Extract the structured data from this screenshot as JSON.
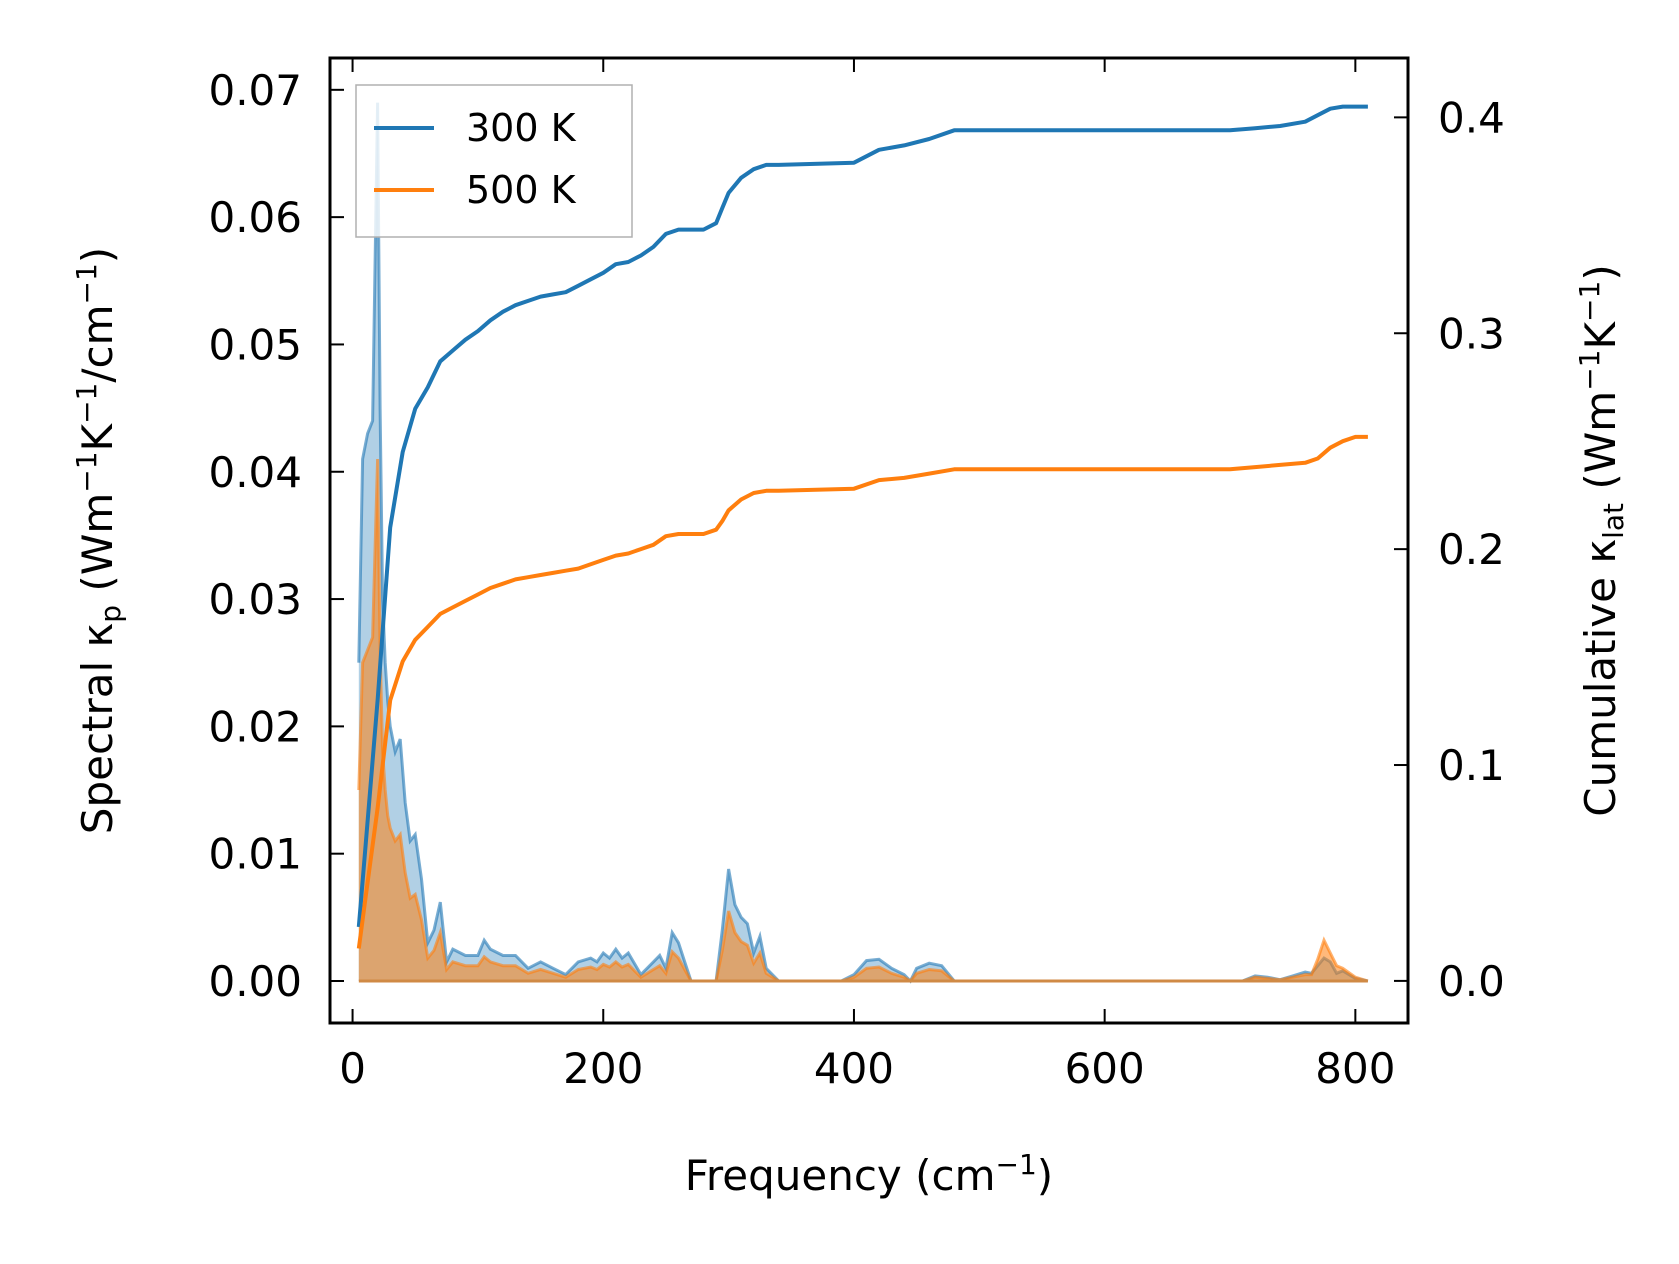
{
  "chart_data": {
    "type": "line",
    "xlabel": "Frequency (cm",
    "xlabel_sup": "−1",
    "xlabel_tail": ")",
    "ylabel_left": {
      "pre": "Spectral κ",
      "sub": "p",
      "mid1": " (Wm",
      "sup1": "−1",
      "mid2": "K",
      "sup2": "−1",
      "mid3": "/cm",
      "sup3": "−1",
      "tail": ")"
    },
    "ylabel_right": {
      "pre": "Cumulative κ",
      "sub": "lat",
      "mid1": " (Wm",
      "sup1": "−1",
      "mid2": "K",
      "sup2": "−1",
      "tail": ")"
    },
    "xlim": [
      -18,
      842
    ],
    "ylim_left": [
      -0.0033,
      0.0725
    ],
    "ylim_right": [
      -0.0195,
      0.4275
    ],
    "xticks": [
      0,
      200,
      400,
      600,
      800
    ],
    "xtick_labels": [
      "0",
      "200",
      "400",
      "600",
      "800"
    ],
    "yticks_left": [
      0.0,
      0.01,
      0.02,
      0.03,
      0.04,
      0.05,
      0.06,
      0.07
    ],
    "ytick_labels_left": [
      "0.00",
      "0.01",
      "0.02",
      "0.03",
      "0.04",
      "0.05",
      "0.06",
      "0.07"
    ],
    "yticks_right": [
      0.0,
      0.1,
      0.2,
      0.3,
      0.4
    ],
    "ytick_labels_right": [
      "0.0",
      "0.1",
      "0.2",
      "0.3",
      "0.4"
    ],
    "legend_position": "top-left",
    "series": [
      {
        "name": "300 K",
        "color": "#1f77b4",
        "axis": "right",
        "kind": "cumulative",
        "x": [
          5,
          10,
          20,
          30,
          40,
          50,
          60,
          70,
          80,
          90,
          100,
          110,
          120,
          130,
          140,
          150,
          160,
          170,
          180,
          190,
          200,
          210,
          220,
          230,
          240,
          250,
          260,
          270,
          280,
          290,
          295,
          300,
          310,
          320,
          330,
          340,
          400,
          420,
          440,
          460,
          480,
          500,
          550,
          600,
          650,
          700,
          720,
          740,
          760,
          770,
          780,
          790,
          800,
          810
        ],
        "y": [
          0.025,
          0.06,
          0.13,
          0.21,
          0.245,
          0.265,
          0.275,
          0.287,
          0.292,
          0.297,
          0.301,
          0.306,
          0.31,
          0.313,
          0.315,
          0.317,
          0.318,
          0.319,
          0.322,
          0.325,
          0.328,
          0.332,
          0.333,
          0.336,
          0.34,
          0.346,
          0.348,
          0.348,
          0.348,
          0.351,
          0.358,
          0.365,
          0.372,
          0.376,
          0.378,
          0.378,
          0.379,
          0.385,
          0.387,
          0.39,
          0.394,
          0.394,
          0.394,
          0.394,
          0.394,
          0.394,
          0.395,
          0.396,
          0.398,
          0.401,
          0.404,
          0.405,
          0.405,
          0.405
        ]
      },
      {
        "name": "500 K",
        "color": "#ff7f0e",
        "axis": "right",
        "kind": "cumulative",
        "x": [
          5,
          10,
          20,
          30,
          40,
          50,
          60,
          70,
          80,
          90,
          100,
          110,
          120,
          130,
          140,
          150,
          160,
          170,
          180,
          190,
          200,
          210,
          220,
          230,
          240,
          250,
          260,
          270,
          280,
          290,
          295,
          300,
          310,
          320,
          330,
          340,
          400,
          420,
          440,
          460,
          480,
          500,
          550,
          600,
          650,
          700,
          720,
          740,
          760,
          770,
          780,
          790,
          800,
          810
        ],
        "y": [
          0.015,
          0.037,
          0.08,
          0.13,
          0.148,
          0.158,
          0.164,
          0.17,
          0.173,
          0.176,
          0.179,
          0.182,
          0.184,
          0.186,
          0.187,
          0.188,
          0.189,
          0.19,
          0.191,
          0.193,
          0.195,
          0.197,
          0.198,
          0.2,
          0.202,
          0.206,
          0.207,
          0.207,
          0.207,
          0.209,
          0.213,
          0.218,
          0.223,
          0.226,
          0.227,
          0.227,
          0.228,
          0.232,
          0.233,
          0.235,
          0.237,
          0.237,
          0.237,
          0.237,
          0.237,
          0.237,
          0.238,
          0.239,
          0.24,
          0.242,
          0.247,
          0.25,
          0.252,
          0.252
        ]
      },
      {
        "name": "",
        "color": "#1f77b4",
        "axis": "left",
        "kind": "spectral",
        "x": [
          5,
          8,
          12,
          16,
          20,
          22,
          24,
          26,
          28,
          30,
          34,
          38,
          42,
          46,
          50,
          55,
          60,
          65,
          70,
          75,
          80,
          90,
          100,
          105,
          110,
          120,
          130,
          140,
          150,
          160,
          170,
          180,
          190,
          195,
          200,
          205,
          210,
          215,
          220,
          230,
          240,
          245,
          250,
          255,
          260,
          265,
          270,
          280,
          290,
          295,
          300,
          305,
          310,
          315,
          320,
          325,
          330,
          340,
          390,
          400,
          410,
          420,
          430,
          440,
          445,
          450,
          460,
          470,
          480,
          500,
          600,
          700,
          710,
          720,
          730,
          740,
          750,
          760,
          765,
          770,
          775,
          780,
          785,
          790,
          800,
          810
        ],
        "y": [
          0.025,
          0.041,
          0.043,
          0.044,
          0.069,
          0.045,
          0.03,
          0.025,
          0.022,
          0.02,
          0.018,
          0.019,
          0.014,
          0.011,
          0.0115,
          0.008,
          0.003,
          0.004,
          0.0062,
          0.0015,
          0.0025,
          0.002,
          0.002,
          0.0032,
          0.0025,
          0.002,
          0.002,
          0.001,
          0.0015,
          0.001,
          0.0005,
          0.0015,
          0.0018,
          0.0015,
          0.0022,
          0.0018,
          0.0025,
          0.0018,
          0.0022,
          0.0005,
          0.0015,
          0.002,
          0.001,
          0.0038,
          0.003,
          0.0015,
          0.0,
          0.0,
          0.0,
          0.004,
          0.0088,
          0.006,
          0.005,
          0.0045,
          0.0022,
          0.0035,
          0.001,
          0.0,
          0.0,
          0.0005,
          0.0016,
          0.0017,
          0.001,
          0.0005,
          0.0,
          0.001,
          0.0014,
          0.0012,
          0.0,
          0.0,
          0.0,
          0.0,
          0.0,
          0.0004,
          0.0003,
          0.0001,
          0.0004,
          0.0007,
          0.0006,
          0.0012,
          0.0018,
          0.0015,
          0.0006,
          0.0008,
          0.0002,
          0.0
        ]
      },
      {
        "name": "",
        "color": "#ff7f0e",
        "axis": "left",
        "kind": "spectral",
        "x": [
          5,
          8,
          12,
          16,
          20,
          22,
          24,
          26,
          28,
          30,
          34,
          38,
          42,
          46,
          50,
          55,
          60,
          65,
          70,
          75,
          80,
          90,
          100,
          105,
          110,
          120,
          130,
          140,
          150,
          160,
          170,
          180,
          190,
          195,
          200,
          205,
          210,
          215,
          220,
          230,
          240,
          245,
          250,
          255,
          260,
          265,
          270,
          280,
          290,
          295,
          300,
          305,
          310,
          315,
          320,
          325,
          330,
          340,
          390,
          400,
          410,
          420,
          430,
          440,
          445,
          450,
          460,
          470,
          480,
          500,
          600,
          700,
          710,
          720,
          730,
          740,
          750,
          760,
          765,
          770,
          775,
          780,
          785,
          790,
          800,
          810
        ],
        "y": [
          0.015,
          0.025,
          0.026,
          0.027,
          0.041,
          0.026,
          0.018,
          0.015,
          0.013,
          0.012,
          0.011,
          0.0115,
          0.0085,
          0.0065,
          0.0068,
          0.0048,
          0.0018,
          0.0024,
          0.0038,
          0.0009,
          0.0015,
          0.0012,
          0.0012,
          0.0019,
          0.0015,
          0.0012,
          0.0012,
          0.0006,
          0.0009,
          0.0006,
          0.0003,
          0.0009,
          0.0011,
          0.0009,
          0.0013,
          0.0011,
          0.0015,
          0.0011,
          0.0013,
          0.0003,
          0.0009,
          0.0012,
          0.0006,
          0.0023,
          0.0018,
          0.0009,
          0.0,
          0.0,
          0.0,
          0.0024,
          0.0055,
          0.0038,
          0.0031,
          0.0028,
          0.0014,
          0.0022,
          0.0006,
          0.0,
          0.0,
          0.0003,
          0.001,
          0.0011,
          0.0006,
          0.0003,
          0.0,
          0.0006,
          0.0009,
          0.0008,
          0.0,
          0.0,
          0.0,
          0.0,
          0.0,
          0.0003,
          0.0002,
          0.0001,
          0.0003,
          0.0005,
          0.0005,
          0.0017,
          0.0032,
          0.0022,
          0.0012,
          0.001,
          0.0003,
          0.0
        ]
      }
    ],
    "legend": [
      {
        "label": "300 K",
        "color": "#1f77b4"
      },
      {
        "label": "500 K",
        "color": "#ff7f0e"
      }
    ]
  }
}
